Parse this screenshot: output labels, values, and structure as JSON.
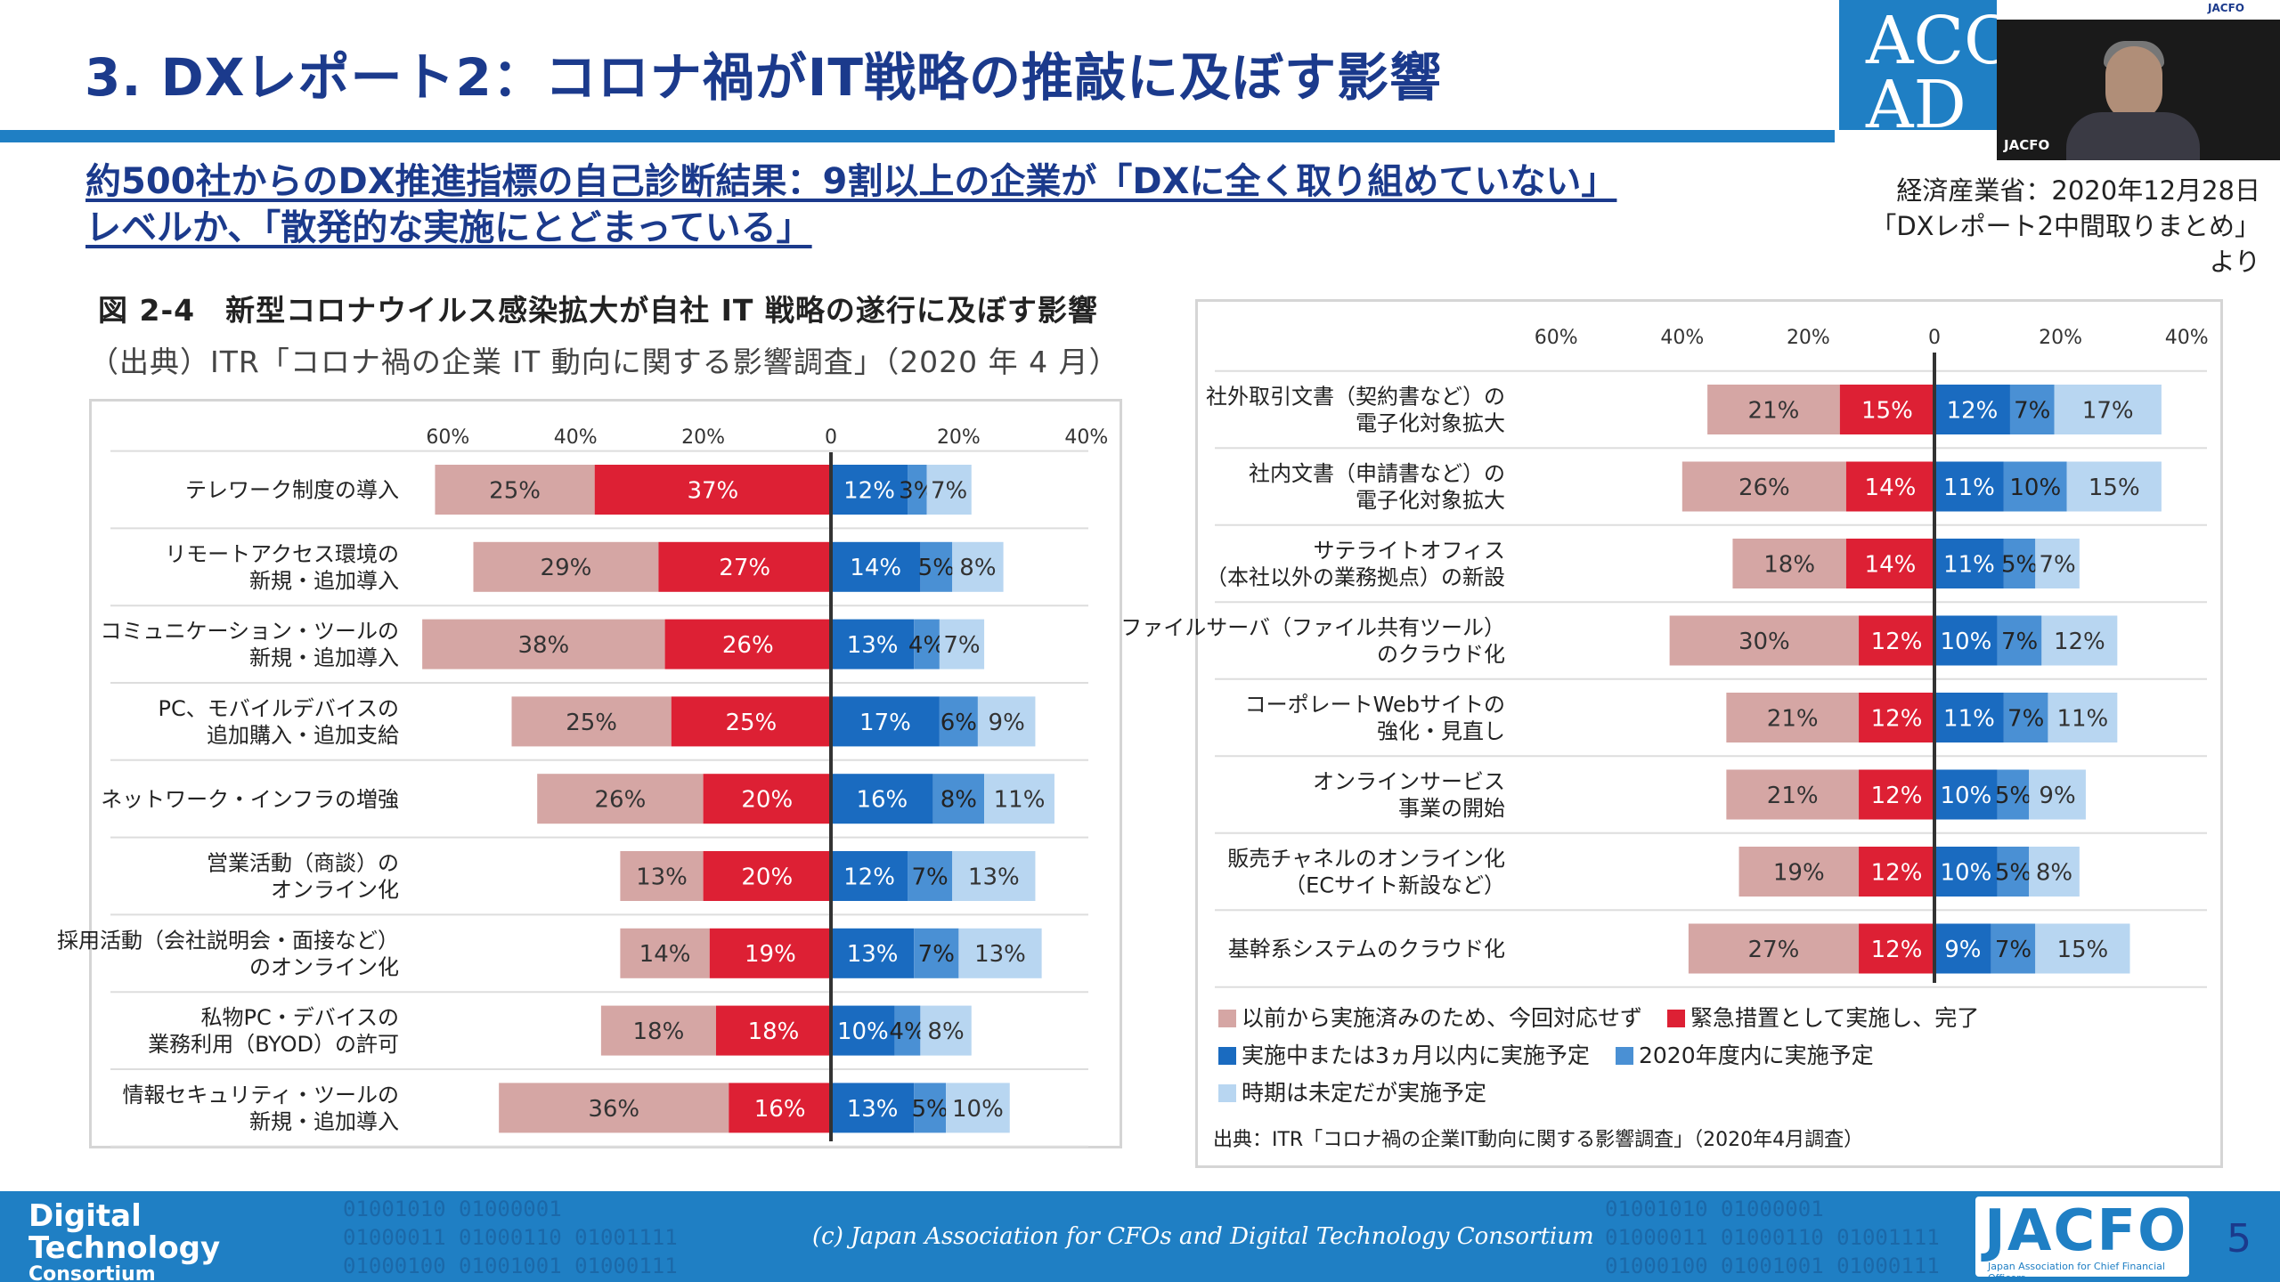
{
  "header": {
    "title": "3. DXレポート2：コロナ禍がIT戦略の推敲に及ぼす影響",
    "logo_text": "ACCO\nAD",
    "video_label": "JACFO",
    "video_top_label": "JACFO"
  },
  "subtitle": {
    "line1": "約500社からのDX推進指標の自己診断結果：9割以上の企業が「DXに全く取り組めていない」",
    "line2": "レベルか、「散発的な実施にとどまっている」"
  },
  "source_top": {
    "line1": "経済産業省：2020年12月28日",
    "line2": "「DXレポート2中間取りまとめ」より"
  },
  "figure": {
    "title": "図 2-4　新型コロナウイルス感染拡大が自社 IT 戦略の遂行に及ぼす影響",
    "source": "（出典）ITR「コロナ禍の企業 IT 動向に関する影響調査」（2020 年 4 月）"
  },
  "colors": {
    "pink": "#d5a6a4",
    "red": "#dd2034",
    "darkblue": "#1a6bc0",
    "midblue": "#4a90d4",
    "lightblue": "#b8d6f1",
    "accent": "#1f7fc4",
    "navy": "#1b3a8c"
  },
  "chart_data": [
    {
      "type": "bar",
      "title": "図 2-4　新型コロナウイルス感染拡大が自社 IT 戦略の遂行に及ぼす影響",
      "axis_ticks": [
        "60%",
        "40%",
        "20%",
        "0",
        "20%",
        "40%"
      ],
      "xlim": [
        -60,
        40
      ],
      "series_names": [
        "以前から実施済みのため、今回対応せず",
        "緊急措置として実施し、完了",
        "実施中または3ヵ月以内に実施予定",
        "2020年度内に実施予定",
        "時期は未定だが実施予定"
      ],
      "categories": [
        [
          "テレワーク制度の導入"
        ],
        [
          "リモートアクセス環境の",
          "新規・追加導入"
        ],
        [
          "コミュニケーション・ツールの",
          "新規・追加導入"
        ],
        [
          "PC、モバイルデバイスの",
          "追加購入・追加支給"
        ],
        [
          "ネットワーク・インフラの増強"
        ],
        [
          "営業活動（商談）の",
          "オンライン化"
        ],
        [
          "採用活動（会社説明会・面接など）",
          "のオンライン化"
        ],
        [
          "私物PC・デバイスの",
          "業務利用（BYOD）の許可"
        ],
        [
          "情報セキュリティ・ツールの",
          "新規・追加導入"
        ]
      ],
      "values": [
        [
          25,
          37,
          12,
          3,
          7
        ],
        [
          29,
          27,
          14,
          5,
          8
        ],
        [
          38,
          26,
          13,
          4,
          7
        ],
        [
          25,
          25,
          17,
          6,
          9
        ],
        [
          26,
          20,
          16,
          8,
          11
        ],
        [
          13,
          20,
          12,
          7,
          13
        ],
        [
          14,
          19,
          13,
          7,
          13
        ],
        [
          18,
          18,
          10,
          4,
          8
        ],
        [
          36,
          16,
          13,
          5,
          10
        ]
      ]
    },
    {
      "type": "bar",
      "title": "",
      "axis_ticks": [
        "60%",
        "40%",
        "20%",
        "0",
        "20%",
        "40%"
      ],
      "xlim": [
        -60,
        40
      ],
      "series_names": [
        "以前から実施済みのため、今回対応せず",
        "緊急措置として実施し、完了",
        "実施中または3ヵ月以内に実施予定",
        "2020年度内に実施予定",
        "時期は未定だが実施予定"
      ],
      "categories": [
        [
          "社外取引文書（契約書など）の",
          "電子化対象拡大"
        ],
        [
          "社内文書（申請書など）の",
          "電子化対象拡大"
        ],
        [
          "サテライトオフィス",
          "（本社以外の業務拠点）の新設"
        ],
        [
          "ファイルサーバ（ファイル共有ツール）",
          "のクラウド化"
        ],
        [
          "コーポレートWebサイトの",
          "強化・見直し"
        ],
        [
          "オンラインサービス",
          "事業の開始"
        ],
        [
          "販売チャネルのオンライン化",
          "（ECサイト新設など）"
        ],
        [
          "基幹系システムのクラウド化"
        ]
      ],
      "values": [
        [
          21,
          15,
          12,
          7,
          17
        ],
        [
          26,
          14,
          11,
          10,
          15
        ],
        [
          18,
          14,
          11,
          5,
          7
        ],
        [
          30,
          12,
          10,
          7,
          12
        ],
        [
          21,
          12,
          11,
          7,
          11
        ],
        [
          21,
          12,
          10,
          5,
          9
        ],
        [
          19,
          12,
          10,
          5,
          8
        ],
        [
          27,
          12,
          9,
          7,
          15
        ]
      ],
      "legend": [
        "以前から実施済みのため、今回対応せず",
        "緊急措置として実施し、完了",
        "実施中または3ヵ月以内に実施予定",
        "2020年度内に実施予定",
        "時期は未定だが実施予定"
      ],
      "source": "出典：ITR「コロナ禍の企業IT動向に関する影響調査」（2020年4月調査）"
    }
  ],
  "footer": {
    "brand_line1": "Digital",
    "brand_line2": "Technology",
    "brand_line3": "Consortium",
    "binary_a": "01001010 01000001\n01000011 01000110 01001111\n01000100 01001001 01000111",
    "binary_b": "01001010 01000001\n01000011 01000110 01001111\n01000100 01001001 01000111",
    "copyright": "(c) Japan Association for CFOs and Digital Technology Consortium",
    "jacfo": "JACFO",
    "jacfo_sub": "Japan Association for Chief Financial Officers",
    "page": "5"
  }
}
